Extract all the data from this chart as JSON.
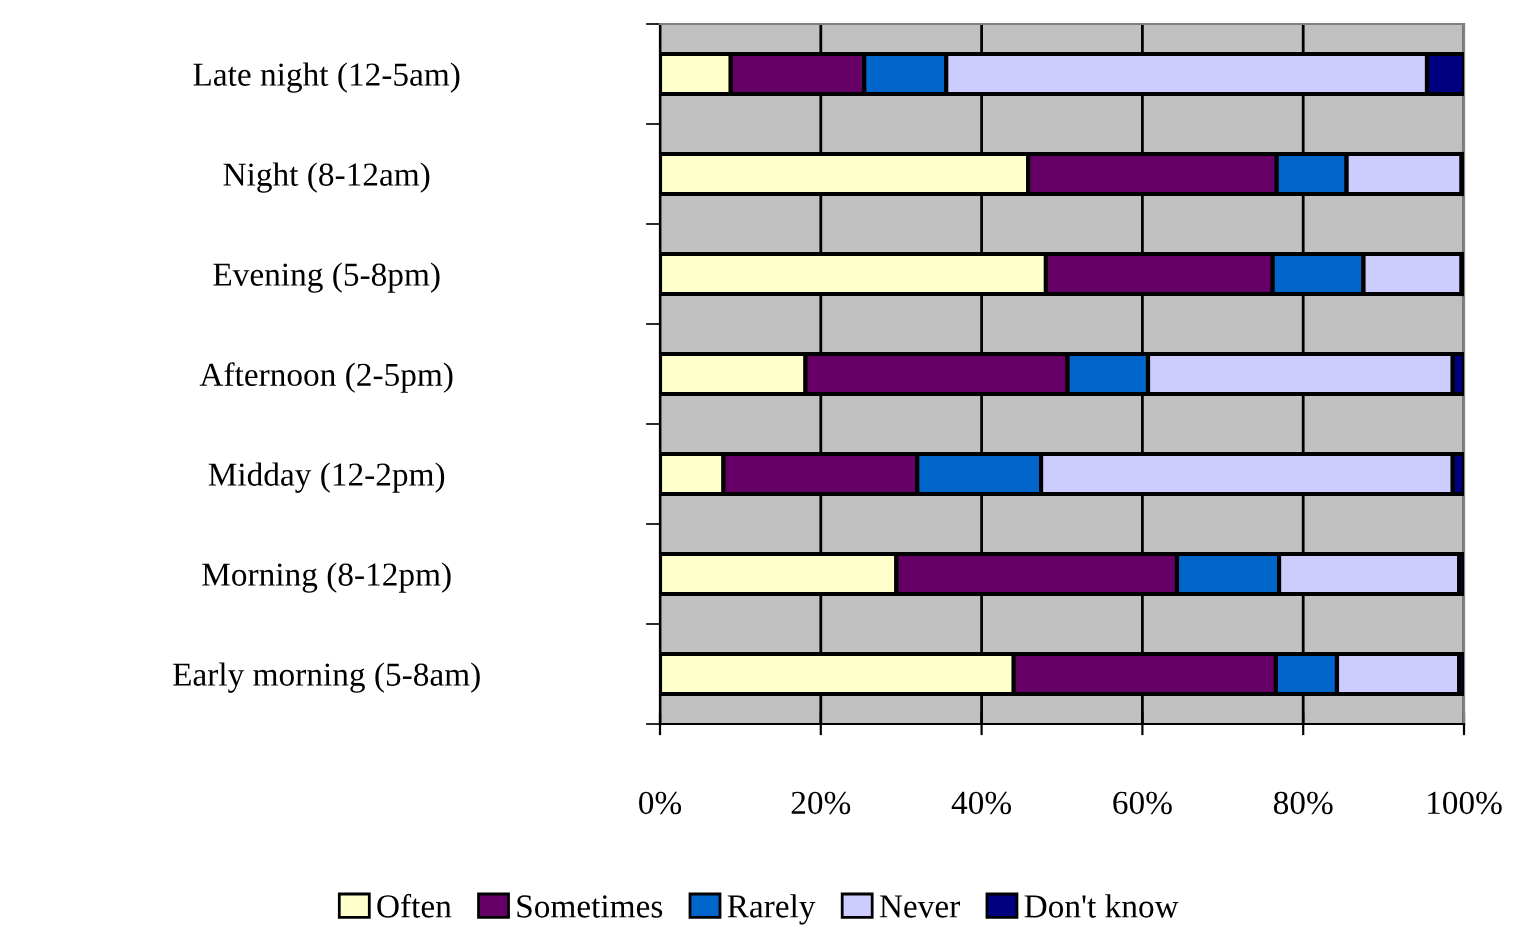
{
  "chart_data": {
    "type": "bar",
    "orientation": "horizontal",
    "stacked": true,
    "categories": [
      "Late night (12-5am)",
      "Night (8-12am)",
      "Evening (5-8pm)",
      "Afternoon (2-5pm)",
      "Midday (12-2pm)",
      "Morning (8-12pm)",
      "Early morning (5-8am)"
    ],
    "series": [
      {
        "name": "Often",
        "color": "#ffffcc",
        "values": [
          8.8,
          45.8,
          48.0,
          18.1,
          7.9,
          29.4,
          44.0
        ]
      },
      {
        "name": "Sometimes",
        "color": "#660066",
        "values": [
          16.6,
          30.9,
          28.2,
          32.6,
          24.1,
          34.9,
          32.6
        ]
      },
      {
        "name": "Rarely",
        "color": "#0066cc",
        "values": [
          10.2,
          8.7,
          11.3,
          10.0,
          15.4,
          12.7,
          7.6
        ]
      },
      {
        "name": "Never",
        "color": "#ccccff",
        "values": [
          59.8,
          14.3,
          12.2,
          37.9,
          51.2,
          22.4,
          15.2
        ]
      },
      {
        "name": "Don't know",
        "color": "#000080",
        "values": [
          4.6,
          0.3,
          0.3,
          1.4,
          1.4,
          0.6,
          0.6
        ]
      }
    ],
    "xlim": [
      0,
      100
    ],
    "xticks": [
      {
        "value": 0,
        "label": "0%"
      },
      {
        "value": 20,
        "label": "20%"
      },
      {
        "value": 40,
        "label": "40%"
      },
      {
        "value": 60,
        "label": "60%"
      },
      {
        "value": 80,
        "label": "80%"
      },
      {
        "value": 100,
        "label": "100%"
      }
    ],
    "grid": "x",
    "legend": "bottom"
  }
}
